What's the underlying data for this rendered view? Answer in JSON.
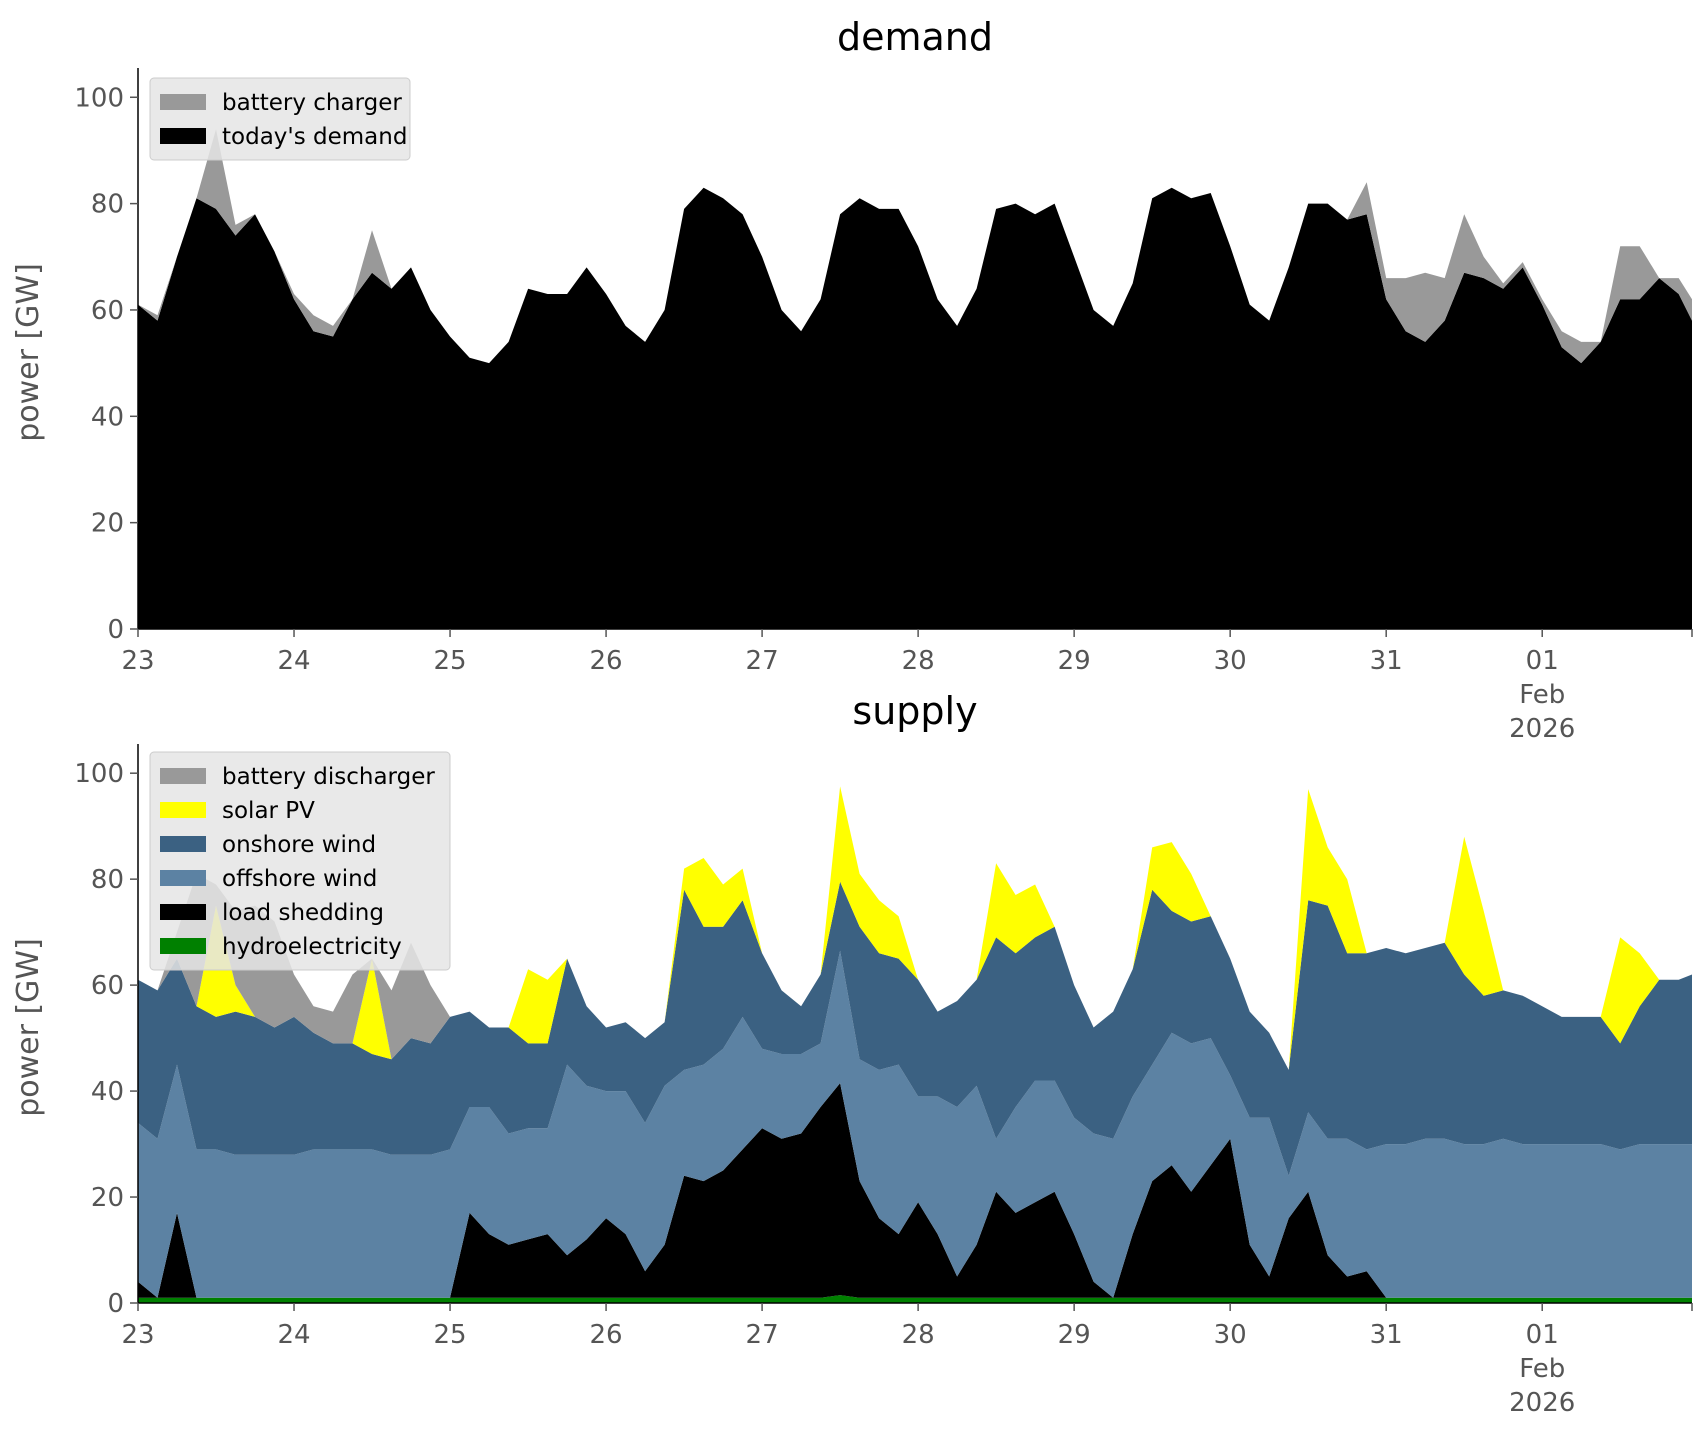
{
  "colors": {
    "battery": "#999999",
    "demand": "#000000",
    "solar": "#ffff00",
    "onshore": "#3b6182",
    "offshore": "#5c82a3",
    "load_shedding": "#000000",
    "hydro": "#008000",
    "legend_background": "#e5e5e5",
    "tick_text": "#555555"
  },
  "chart_data": [
    {
      "type": "area",
      "stacked": true,
      "title": "demand",
      "ylabel": "power [GW]",
      "ylim": [
        0,
        104
      ],
      "yticks": [
        0,
        20,
        40,
        60,
        80,
        100
      ],
      "x_unit": "days from 2026-01-23",
      "xlim": [
        0,
        9.96
      ],
      "x": [
        0.0,
        0.125,
        0.25,
        0.375,
        0.5,
        0.625,
        0.75,
        0.875,
        1.0,
        1.125,
        1.25,
        1.375,
        1.5,
        1.625,
        1.75,
        1.875,
        2.0,
        2.125,
        2.25,
        2.375,
        2.5,
        2.625,
        2.75,
        2.875,
        3.0,
        3.125,
        3.25,
        3.375,
        3.5,
        3.625,
        3.75,
        3.875,
        4.0,
        4.125,
        4.25,
        4.375,
        4.5,
        4.625,
        4.75,
        4.875,
        5.0,
        5.125,
        5.25,
        5.375,
        5.5,
        5.625,
        5.75,
        5.875,
        6.0,
        6.125,
        6.25,
        6.375,
        6.5,
        6.625,
        6.75,
        6.875,
        7.0,
        7.125,
        7.25,
        7.375,
        7.5,
        7.625,
        7.75,
        7.875,
        8.0,
        8.125,
        8.25,
        8.375,
        8.5,
        8.625,
        8.75,
        8.875,
        9.0,
        9.125,
        9.25,
        9.375,
        9.5,
        9.625,
        9.75,
        9.875,
        9.96
      ],
      "xticks": [
        {
          "x": 0,
          "lines": [
            "23"
          ]
        },
        {
          "x": 1,
          "lines": [
            "24"
          ]
        },
        {
          "x": 2,
          "lines": [
            "25"
          ]
        },
        {
          "x": 3,
          "lines": [
            "26"
          ]
        },
        {
          "x": 4,
          "lines": [
            "27"
          ]
        },
        {
          "x": 5,
          "lines": [
            "28"
          ]
        },
        {
          "x": 6,
          "lines": [
            "29"
          ]
        },
        {
          "x": 7,
          "lines": [
            "30"
          ]
        },
        {
          "x": 8,
          "lines": [
            "31"
          ]
        },
        {
          "x": 9,
          "lines": [
            "01",
            "Feb",
            "2026"
          ]
        },
        {
          "x": 9.96,
          "lines": []
        }
      ],
      "series": [
        {
          "name": "today's demand",
          "color": "#000000",
          "values": [
            61,
            58,
            70,
            81,
            79,
            74,
            78,
            71,
            62,
            56,
            55,
            62,
            67,
            64,
            68,
            60,
            55,
            51,
            50,
            54,
            64,
            63,
            63,
            68,
            63,
            57,
            54,
            60,
            79,
            83,
            81,
            78,
            70,
            60,
            56,
            62,
            78,
            81,
            79,
            79,
            72,
            62,
            57,
            64,
            79,
            80,
            78,
            80,
            70,
            60,
            57,
            65,
            81,
            83,
            81,
            82,
            72,
            61,
            58,
            68,
            80,
            80,
            77,
            78,
            62,
            56,
            54,
            58,
            67,
            66,
            64,
            68,
            61,
            53,
            50,
            54,
            62,
            62,
            66,
            63,
            58
          ]
        },
        {
          "name": "battery charger",
          "color": "#999999",
          "values": [
            0,
            1,
            0,
            0,
            15,
            2,
            0,
            0,
            1,
            3,
            2,
            0,
            8,
            0,
            0,
            0,
            0,
            0,
            0,
            0,
            0,
            0,
            0,
            0,
            0,
            0,
            0,
            0,
            0,
            0,
            0,
            0,
            0,
            0,
            0,
            0,
            0,
            0,
            0,
            0,
            0,
            0,
            0,
            0,
            0,
            0,
            0,
            0,
            0,
            0,
            0,
            0,
            0,
            0,
            0,
            0,
            0,
            0,
            0,
            0,
            0,
            0,
            0,
            6,
            4,
            10,
            13,
            8,
            11,
            4,
            1,
            1,
            1,
            3,
            4,
            0,
            10,
            10,
            0,
            3,
            4
          ]
        }
      ]
    },
    {
      "type": "area",
      "stacked": true,
      "title": "supply",
      "ylabel": "power [GW]",
      "ylim": [
        0,
        104
      ],
      "yticks": [
        0,
        20,
        40,
        60,
        80,
        100
      ],
      "x_unit": "days from 2026-01-23",
      "xlim": [
        0,
        9.96
      ],
      "x": [
        0.0,
        0.125,
        0.25,
        0.375,
        0.5,
        0.625,
        0.75,
        0.875,
        1.0,
        1.125,
        1.25,
        1.375,
        1.5,
        1.625,
        1.75,
        1.875,
        2.0,
        2.125,
        2.25,
        2.375,
        2.5,
        2.625,
        2.75,
        2.875,
        3.0,
        3.125,
        3.25,
        3.375,
        3.5,
        3.625,
        3.75,
        3.875,
        4.0,
        4.125,
        4.25,
        4.375,
        4.5,
        4.625,
        4.75,
        4.875,
        5.0,
        5.125,
        5.25,
        5.375,
        5.5,
        5.625,
        5.75,
        5.875,
        6.0,
        6.125,
        6.25,
        6.375,
        6.5,
        6.625,
        6.75,
        6.875,
        7.0,
        7.125,
        7.25,
        7.375,
        7.5,
        7.625,
        7.75,
        7.875,
        8.0,
        8.125,
        8.25,
        8.375,
        8.5,
        8.625,
        8.75,
        8.875,
        9.0,
        9.125,
        9.25,
        9.375,
        9.5,
        9.625,
        9.75,
        9.875,
        9.96
      ],
      "xticks": [
        {
          "x": 0,
          "lines": [
            "23"
          ]
        },
        {
          "x": 1,
          "lines": [
            "24"
          ]
        },
        {
          "x": 2,
          "lines": [
            "25"
          ]
        },
        {
          "x": 3,
          "lines": [
            "26"
          ]
        },
        {
          "x": 4,
          "lines": [
            "27"
          ]
        },
        {
          "x": 5,
          "lines": [
            "28"
          ]
        },
        {
          "x": 6,
          "lines": [
            "29"
          ]
        },
        {
          "x": 7,
          "lines": [
            "30"
          ]
        },
        {
          "x": 8,
          "lines": [
            "31"
          ]
        },
        {
          "x": 9,
          "lines": [
            "01",
            "Feb",
            "2026"
          ]
        },
        {
          "x": 9.96,
          "lines": []
        }
      ],
      "series": [
        {
          "name": "hydroelectricity",
          "color": "#008000",
          "values": [
            1,
            1,
            1,
            1,
            1,
            1,
            1,
            1,
            1,
            1,
            1,
            1,
            1,
            1,
            1,
            1,
            1,
            1,
            1,
            1,
            1,
            1,
            1,
            1,
            1,
            1,
            1,
            1,
            1,
            1,
            1,
            1,
            1,
            1,
            1,
            1,
            1.5,
            1,
            1,
            1,
            1,
            1,
            1,
            1,
            1,
            1,
            1,
            1,
            1,
            1,
            1,
            1,
            1,
            1,
            1,
            1,
            1,
            1,
            1,
            1,
            1,
            1,
            1,
            1,
            1,
            1,
            1,
            1,
            1,
            1,
            1,
            1,
            1,
            1,
            1,
            1,
            1,
            1,
            1,
            1,
            1
          ]
        },
        {
          "name": "load shedding",
          "color": "#000000",
          "values": [
            3,
            0,
            16,
            0,
            0,
            0,
            0,
            0,
            0,
            0,
            0,
            0,
            0,
            0,
            0,
            0,
            0,
            16,
            12,
            10,
            11,
            12,
            8,
            11,
            15,
            12,
            5,
            10,
            23,
            22,
            24,
            28,
            32,
            30,
            31,
            36,
            40,
            22,
            15,
            12,
            18,
            12,
            4,
            10,
            20,
            16,
            18,
            20,
            12,
            3,
            0,
            12,
            22,
            25,
            20,
            25,
            30,
            10,
            4,
            15,
            20,
            8,
            4,
            5,
            0,
            0,
            0,
            0,
            0,
            0,
            0,
            0,
            0,
            0,
            0,
            0,
            0,
            0,
            0,
            0,
            0
          ]
        },
        {
          "name": "offshore wind",
          "color": "#5c82a3",
          "values": [
            30,
            30,
            28,
            28,
            28,
            27,
            27,
            27,
            27,
            28,
            28,
            28,
            28,
            27,
            27,
            27,
            28,
            20,
            24,
            21,
            21,
            20,
            36,
            29,
            24,
            27,
            28,
            30,
            20,
            22,
            23,
            25,
            15,
            16,
            15,
            12,
            25,
            23,
            28,
            32,
            20,
            26,
            32,
            30,
            10,
            20,
            23,
            21,
            22,
            28,
            30,
            26,
            22,
            25,
            28,
            24,
            12,
            24,
            30,
            8,
            15,
            22,
            26,
            23,
            29,
            29,
            30,
            30,
            29,
            29,
            30,
            29,
            29,
            29,
            29,
            29,
            28,
            29,
            29,
            29,
            29
          ]
        },
        {
          "name": "onshore wind",
          "color": "#3b6182",
          "values": [
            27,
            28,
            20,
            27,
            25,
            27,
            26,
            24,
            26,
            22,
            20,
            20,
            18,
            18,
            22,
            21,
            25,
            18,
            15,
            20,
            16,
            16,
            20,
            15,
            12,
            13,
            16,
            12,
            34,
            26,
            23,
            22,
            18,
            12,
            9,
            13,
            13,
            25,
            22,
            20,
            22,
            16,
            20,
            20,
            38,
            29,
            27,
            29,
            25,
            20,
            24,
            24,
            33,
            23,
            23,
            23,
            22,
            20,
            16,
            20,
            40,
            44,
            35,
            37,
            37,
            36,
            36,
            37,
            32,
            28,
            28,
            28,
            26,
            24,
            24,
            24,
            20,
            26,
            31,
            31,
            32
          ]
        },
        {
          "name": "solar PV",
          "color": "#ffff00",
          "values": [
            0,
            0,
            0,
            0,
            21,
            5,
            0,
            0,
            0,
            0,
            0,
            0,
            18,
            0,
            0,
            0,
            0,
            0,
            0,
            0,
            14,
            12,
            0,
            0,
            0,
            0,
            0,
            0,
            4,
            13,
            8,
            6,
            0,
            0,
            0,
            0,
            18,
            10,
            10,
            8,
            0,
            0,
            0,
            0,
            14,
            11,
            10,
            0,
            0,
            0,
            0,
            0,
            8,
            13,
            9,
            0,
            0,
            0,
            0,
            0,
            21,
            11,
            14,
            0,
            0,
            0,
            0,
            0,
            26,
            16,
            0,
            0,
            0,
            0,
            0,
            0,
            20,
            10,
            0,
            0,
            0
          ]
        },
        {
          "name": "battery discharger",
          "color": "#999999",
          "values": [
            0,
            0,
            5,
            25,
            4,
            14,
            21,
            20,
            8,
            5,
            6,
            13,
            0,
            13,
            18,
            11,
            0,
            0,
            0,
            0,
            0,
            0,
            0,
            0,
            0,
            0,
            0,
            0,
            0,
            0,
            0,
            0,
            0,
            0,
            0,
            0,
            0,
            0,
            0,
            0,
            0,
            0,
            0,
            0,
            0,
            0,
            0,
            0,
            0,
            0,
            0,
            0,
            0,
            0,
            0,
            0,
            0,
            0,
            0,
            0,
            0,
            0,
            0,
            0,
            0,
            0,
            0,
            0,
            0,
            0,
            0,
            0,
            0,
            0,
            0,
            0,
            0,
            0,
            0,
            0,
            0
          ]
        }
      ],
      "legend_order": [
        "battery discharger",
        "solar PV",
        "onshore wind",
        "offshore wind",
        "load shedding",
        "hydroelectricity"
      ]
    }
  ],
  "demand_legend_order": [
    "battery charger",
    "today's demand"
  ]
}
